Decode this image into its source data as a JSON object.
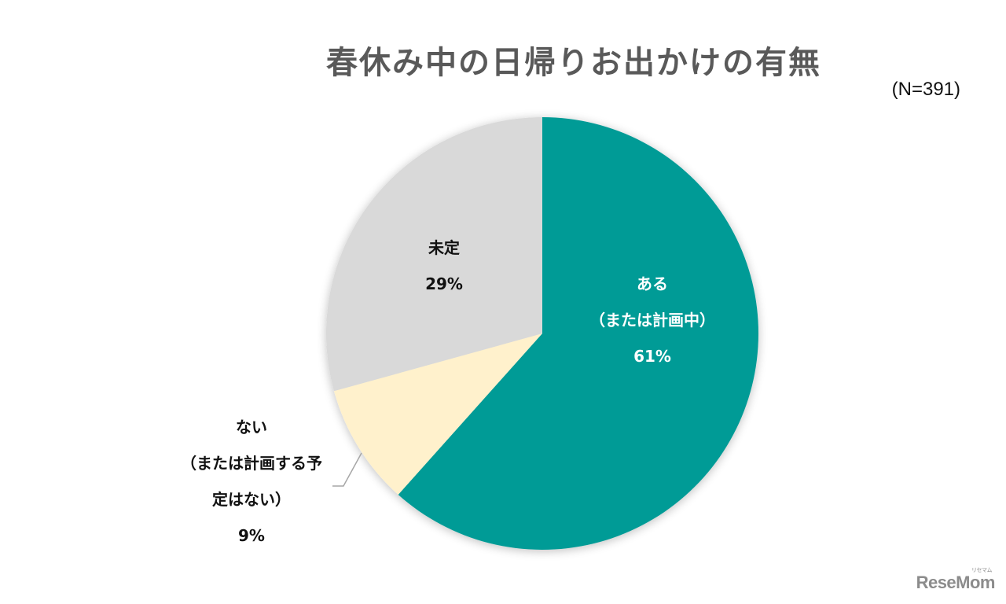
{
  "chart_data": {
    "type": "pie",
    "title": "春休み中の日帰りお出かけの有無",
    "subtitle": "(N=391)",
    "start_angle": "12 o'clock, clockwise",
    "slices": [
      {
        "label": "ある（または計画中）",
        "value": 61,
        "color": "#009B96"
      },
      {
        "label": "ない（または計画する予定はない）",
        "value": 9,
        "color": "#FFF1CC"
      },
      {
        "label": "未定",
        "value": 29,
        "color": "#D9D9D9"
      }
    ],
    "legend": "none (labels on slices)"
  },
  "header": {
    "title": "春休み中の日帰りお出かけの有無",
    "sample_size": "(N=391)"
  },
  "labels": {
    "yes": {
      "line1": "ある",
      "line2": "（または計画中）",
      "pct": "61%"
    },
    "undecided": {
      "line1": "未定",
      "pct": "29%"
    },
    "no": {
      "line1": "ない",
      "line2": "（または計画する予",
      "line3": "定はない）",
      "pct": "9%"
    }
  },
  "watermark": {
    "text": "ReseMom",
    "ruby": "リセマム"
  }
}
